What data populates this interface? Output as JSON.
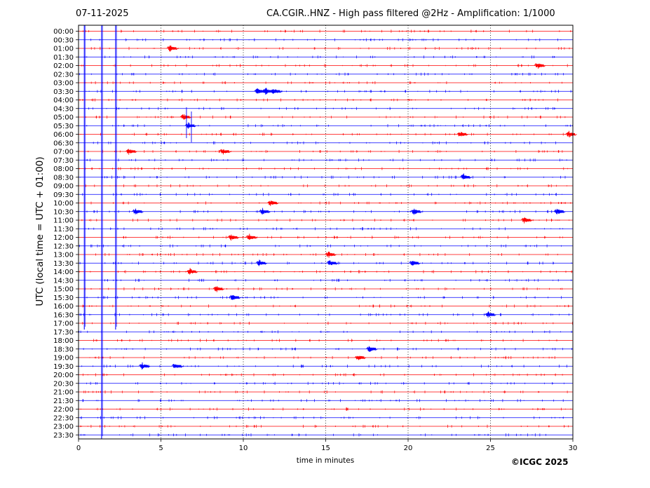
{
  "header": {
    "date": "07-11-2025",
    "title": "CA.CGIR..HNZ - High pass filtered @2Hz - Amplification: 1/1000"
  },
  "footer": {
    "copyright": "©ICGC 2025"
  },
  "colors": {
    "trace_even": "#ff0000",
    "trace_odd": "#0000ff",
    "grid": "#000000",
    "axes": "#000000"
  },
  "chart_data": {
    "type": "line",
    "title": "CA.CGIR..HNZ - High pass filtered @2Hz - Amplification: 1/1000",
    "xlabel": "time in minutes",
    "ylabel": "UTC (local time = UTC + 01:00)",
    "xlim": [
      0,
      30
    ],
    "x_ticks": [
      0,
      5,
      10,
      15,
      20,
      25,
      30
    ],
    "x_grid": "dotted",
    "series_colors_alternate": [
      "red",
      "blue"
    ],
    "rows": [
      "00:00",
      "00:30",
      "01:00",
      "01:30",
      "02:00",
      "02:30",
      "03:00",
      "03:30",
      "04:00",
      "04:30",
      "05:00",
      "05:30",
      "06:00",
      "06:30",
      "07:00",
      "07:30",
      "08:00",
      "08:30",
      "09:00",
      "09:30",
      "10:00",
      "10:30",
      "11:00",
      "11:30",
      "12:00",
      "12:30",
      "13:00",
      "13:30",
      "14:00",
      "14:30",
      "15:00",
      "15:30",
      "16:00",
      "16:30",
      "17:00",
      "17:30",
      "18:00",
      "18:30",
      "19:00",
      "19:30",
      "20:00",
      "20:30",
      "21:00",
      "21:30",
      "22:00",
      "22:30",
      "23:00",
      "23:30"
    ],
    "long_vertical_spikes_minutes": [
      0.35,
      1.4,
      2.25
    ],
    "events": [
      {
        "row": "01:00",
        "minute": 5.7
      },
      {
        "row": "02:00",
        "minute": 28.0
      },
      {
        "row": "03:30",
        "minute": 11.0
      },
      {
        "row": "03:30",
        "minute": 11.5
      },
      {
        "row": "03:30",
        "minute": 12.0
      },
      {
        "row": "05:00",
        "minute": 6.5
      },
      {
        "row": "05:30",
        "minute": 6.8
      },
      {
        "row": "06:00",
        "minute": 23.3
      },
      {
        "row": "06:00",
        "minute": 29.9
      },
      {
        "row": "07:00",
        "minute": 3.2
      },
      {
        "row": "07:00",
        "minute": 8.9
      },
      {
        "row": "08:30",
        "minute": 23.5
      },
      {
        "row": "10:00",
        "minute": 11.8
      },
      {
        "row": "10:30",
        "minute": 3.6
      },
      {
        "row": "10:30",
        "minute": 11.3
      },
      {
        "row": "10:30",
        "minute": 20.5
      },
      {
        "row": "10:30",
        "minute": 29.2
      },
      {
        "row": "11:00",
        "minute": 27.2
      },
      {
        "row": "12:00",
        "minute": 9.4
      },
      {
        "row": "12:00",
        "minute": 10.5
      },
      {
        "row": "13:00",
        "minute": 15.3
      },
      {
        "row": "13:30",
        "minute": 11.1
      },
      {
        "row": "13:30",
        "minute": 15.4
      },
      {
        "row": "13:30",
        "minute": 20.4
      },
      {
        "row": "14:00",
        "minute": 6.9
      },
      {
        "row": "15:00",
        "minute": 8.5
      },
      {
        "row": "15:30",
        "minute": 9.5
      },
      {
        "row": "16:30",
        "minute": 25.0
      },
      {
        "row": "18:30",
        "minute": 17.8
      },
      {
        "row": "19:00",
        "minute": 17.1
      },
      {
        "row": "19:30",
        "minute": 4.0
      },
      {
        "row": "19:30",
        "minute": 6.0
      }
    ]
  }
}
